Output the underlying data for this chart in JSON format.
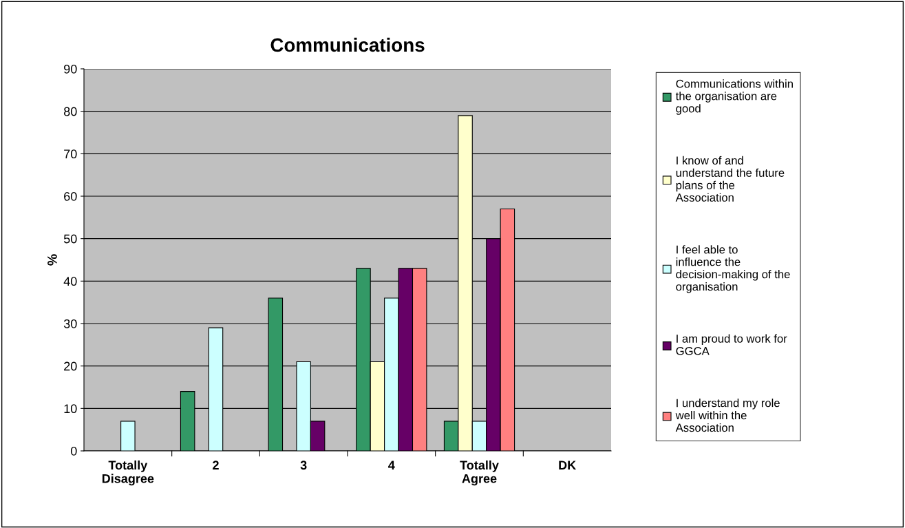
{
  "chart_data": {
    "type": "bar",
    "title": "Communications",
    "ylabel": "%",
    "categories": [
      "Totally\nDisagree",
      "2",
      "3",
      "4",
      "Totally\nAgree",
      "DK"
    ],
    "series": [
      {
        "name": "Communications within the organisation are good",
        "color": "#339966",
        "values": [
          null,
          14,
          36,
          43,
          7,
          null
        ]
      },
      {
        "name": "I know of and understand the future plans of the Association",
        "color": "#ffffcc",
        "values": [
          null,
          null,
          null,
          21,
          79,
          null
        ]
      },
      {
        "name": "I feel able to influence the decision-making of the organisation",
        "color": "#ccffff",
        "values": [
          7,
          29,
          21,
          36,
          7,
          null
        ]
      },
      {
        "name": "I am proud to work for GGCA",
        "color": "#660066",
        "values": [
          null,
          null,
          7,
          43,
          50,
          null
        ]
      },
      {
        "name": "I understand my role well within the Association",
        "color": "#ff8080",
        "values": [
          null,
          null,
          null,
          43,
          57,
          null
        ]
      }
    ],
    "ylim": [
      0,
      90
    ],
    "yticks": [
      0,
      10,
      20,
      30,
      40,
      50,
      60,
      70,
      80,
      90
    ],
    "grid": "y",
    "legend": "right"
  }
}
